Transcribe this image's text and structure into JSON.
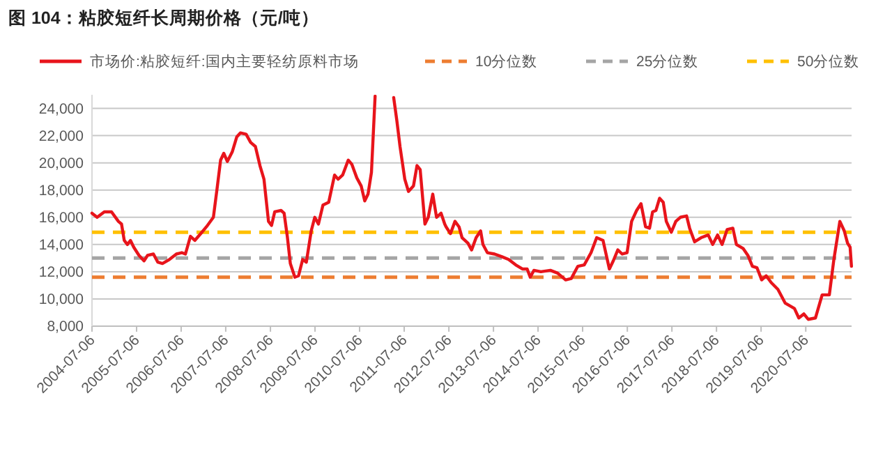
{
  "chart_data": {
    "type": "line",
    "title": "图 104：粘胶短纤长周期价格（元/吨）",
    "xlim": [
      "2004-07-06",
      "2021-07-16"
    ],
    "ylim": [
      8000,
      25000
    ],
    "xticks": [
      "2004-07-06",
      "2005-07-06",
      "2006-07-06",
      "2007-07-06",
      "2008-07-06",
      "2009-07-06",
      "2010-07-06",
      "2011-07-06",
      "2012-07-06",
      "2013-07-06",
      "2014-07-06",
      "2015-07-06",
      "2016-07-06",
      "2017-07-06",
      "2018-07-06",
      "2019-07-06",
      "2020-07-06"
    ],
    "yticks": [
      {
        "value": 8000,
        "label": "8,000"
      },
      {
        "value": 10000,
        "label": "10,000"
      },
      {
        "value": 12000,
        "label": "12,000"
      },
      {
        "value": 14000,
        "label": "14,000"
      },
      {
        "value": 16000,
        "label": "16,000"
      },
      {
        "value": 18000,
        "label": "18,000"
      },
      {
        "value": 20000,
        "label": "20,000"
      },
      {
        "value": 22000,
        "label": "22,000"
      },
      {
        "value": 24000,
        "label": "24,000"
      }
    ],
    "grid": "y",
    "legend": "top",
    "marker": "none",
    "line_style": "solid",
    "ref_lines": [
      {
        "axis": "y",
        "value": 11600,
        "label": "10分位数",
        "color": "#ed7d31",
        "line_style": "dashed"
      },
      {
        "axis": "y",
        "value": 13000,
        "label": "25分位数",
        "color": "#a5a5a5",
        "line_style": "dashed"
      },
      {
        "axis": "y",
        "value": 14900,
        "label": "50分位数",
        "color": "#ffc000",
        "line_style": "dashed"
      }
    ],
    "series": [
      {
        "name": "市场价:粘胶短纤:国内主要轻纺原料市场",
        "color": "#e8141b",
        "x": [
          "2004-07-06",
          "2004-08-17",
          "2004-10-15",
          "2004-12-13",
          "2005-02-07",
          "2005-03-05",
          "2005-03-27",
          "2005-04-22",
          "2005-05-17",
          "2005-06-13",
          "2005-07-26",
          "2005-09-05",
          "2005-10-04",
          "2005-11-21",
          "2005-12-27",
          "2006-02-03",
          "2006-04-01",
          "2006-05-28",
          "2006-07-11",
          "2006-08-10",
          "2006-09-20",
          "2006-10-26",
          "2006-12-13",
          "2007-01-29",
          "2007-03-27",
          "2007-04-26",
          "2007-05-25",
          "2007-06-20",
          "2007-07-19",
          "2007-08-28",
          "2007-10-04",
          "2007-11-03",
          "2007-12-20",
          "2008-01-26",
          "2008-03-05",
          "2008-04-11",
          "2008-05-14",
          "2008-06-20",
          "2008-07-15",
          "2008-08-10",
          "2008-10-01",
          "2008-10-26",
          "2008-11-21",
          "2008-12-16",
          "2009-01-22",
          "2009-02-21",
          "2009-03-27",
          "2009-04-26",
          "2009-06-05",
          "2009-07-04",
          "2009-08-03",
          "2009-09-09",
          "2009-10-26",
          "2009-12-13",
          "2010-01-11",
          "2010-02-17",
          "2010-04-04",
          "2010-05-03",
          "2010-06-13",
          "2010-07-19",
          "2010-08-17",
          "2010-09-13",
          "2010-10-11",
          "2010-11-10",
          "2010-11-17",
          "2011-01-19",
          "2011-04-11",
          "2011-05-07",
          "2011-06-02",
          "2011-07-11",
          "2011-08-10",
          "2011-09-20",
          "2011-10-19",
          "2011-11-14",
          "2011-12-23",
          "2012-01-19",
          "2012-02-25",
          "2012-03-27",
          "2012-05-03",
          "2012-06-02",
          "2012-06-13",
          "2012-07-19",
          "2012-08-25",
          "2012-09-27",
          "2012-10-22",
          "2012-12-09",
          "2013-01-08",
          "2013-02-14",
          "2013-03-23",
          "2013-04-11",
          "2013-05-17",
          "2013-07-15",
          "2013-09-13",
          "2013-11-07",
          "2014-01-04",
          "2014-02-28",
          "2014-04-08",
          "2014-05-03",
          "2014-06-02",
          "2014-07-29",
          "2014-10-15",
          "2014-12-13",
          "2015-02-17",
          "2015-04-04",
          "2015-05-28",
          "2015-07-19",
          "2015-09-13",
          "2015-10-29",
          "2015-12-20",
          "2016-02-10",
          "2016-03-13",
          "2016-04-19",
          "2016-05-25",
          "2016-07-04",
          "2016-08-10",
          "2016-09-20",
          "2016-10-26",
          "2016-12-02",
          "2017-01-04",
          "2017-01-29",
          "2017-02-25",
          "2017-03-27",
          "2017-04-26",
          "2017-05-21",
          "2017-07-01",
          "2017-08-07",
          "2017-09-13",
          "2017-11-03",
          "2017-11-28",
          "2018-01-08",
          "2018-03-02",
          "2018-04-29",
          "2018-06-05",
          "2018-07-15",
          "2018-08-21",
          "2018-10-01",
          "2018-11-17",
          "2018-12-16",
          "2019-02-10",
          "2019-03-20",
          "2019-04-26",
          "2019-06-02",
          "2019-07-11",
          "2019-08-17",
          "2019-09-27",
          "2019-11-21",
          "2020-01-19",
          "2020-02-25",
          "2020-04-04",
          "2020-05-10",
          "2020-06-20",
          "2020-07-26",
          "2020-09-23",
          "2020-11-17",
          "2021-01-15",
          "2021-02-21",
          "2021-04-11",
          "2021-05-17",
          "2021-06-13",
          "2021-07-04",
          "2021-07-15"
        ],
        "values": [
          16300,
          16000,
          16400,
          16400,
          15700,
          15500,
          14300,
          14000,
          14300,
          13800,
          13200,
          12800,
          13200,
          13300,
          12700,
          12600,
          12900,
          13300,
          13400,
          13300,
          14600,
          14300,
          14800,
          15300,
          16000,
          18100,
          20200,
          20700,
          20100,
          20800,
          21900,
          22200,
          22100,
          21500,
          21200,
          19800,
          18800,
          15700,
          15400,
          16400,
          16500,
          16300,
          14600,
          12600,
          11600,
          11700,
          12900,
          12700,
          15000,
          16000,
          15500,
          16900,
          17100,
          19100,
          18800,
          19100,
          20200,
          19900,
          18900,
          18300,
          17200,
          17700,
          19300,
          24900,
          null,
          null,
          24800,
          23100,
          21200,
          18800,
          17900,
          18300,
          19800,
          19500,
          15500,
          16000,
          17700,
          16000,
          16300,
          15500,
          15300,
          14800,
          15700,
          15300,
          14500,
          14100,
          13600,
          14500,
          15000,
          14000,
          13400,
          13300,
          13100,
          12900,
          12500,
          12200,
          12200,
          11600,
          12100,
          12000,
          12100,
          11900,
          11400,
          11500,
          12400,
          12500,
          13400,
          14500,
          14300,
          12200,
          12800,
          13600,
          13300,
          13400,
          15700,
          16500,
          17000,
          15300,
          15200,
          16400,
          16500,
          17400,
          17100,
          15700,
          14900,
          15700,
          16000,
          16100,
          15200,
          14200,
          14500,
          14700,
          14000,
          14700,
          14000,
          15100,
          15200,
          14000,
          13700,
          13200,
          12400,
          12300,
          11400,
          11700,
          11200,
          10700,
          9700,
          9500,
          9300,
          8600,
          8900,
          8500,
          8600,
          10300,
          10300,
          12900,
          15700,
          15000,
          14100,
          13800,
          12400
        ]
      }
    ]
  }
}
